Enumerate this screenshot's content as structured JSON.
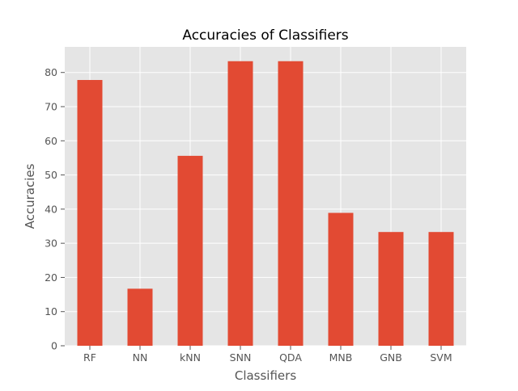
{
  "chart_data": {
    "type": "bar",
    "title": "Accuracies of Classifiers",
    "xlabel": "Classifiers",
    "ylabel": "Accuracies",
    "categories": [
      "RF",
      "NN",
      "kNN",
      "SNN",
      "QDA",
      "MNB",
      "GNB",
      "SVM"
    ],
    "values": [
      77.8,
      16.7,
      55.6,
      83.3,
      83.3,
      38.9,
      33.3,
      33.3
    ],
    "ylim": [
      0,
      87.5
    ],
    "yticks": [
      0,
      10,
      20,
      30,
      40,
      50,
      60,
      70,
      80
    ],
    "grid": true,
    "legend": "none",
    "colors": {
      "bar": "#E24A33",
      "plot_background": "#E5E5E5",
      "grid": "#FFFFFF",
      "text": "#555555",
      "title": "#000000"
    }
  }
}
